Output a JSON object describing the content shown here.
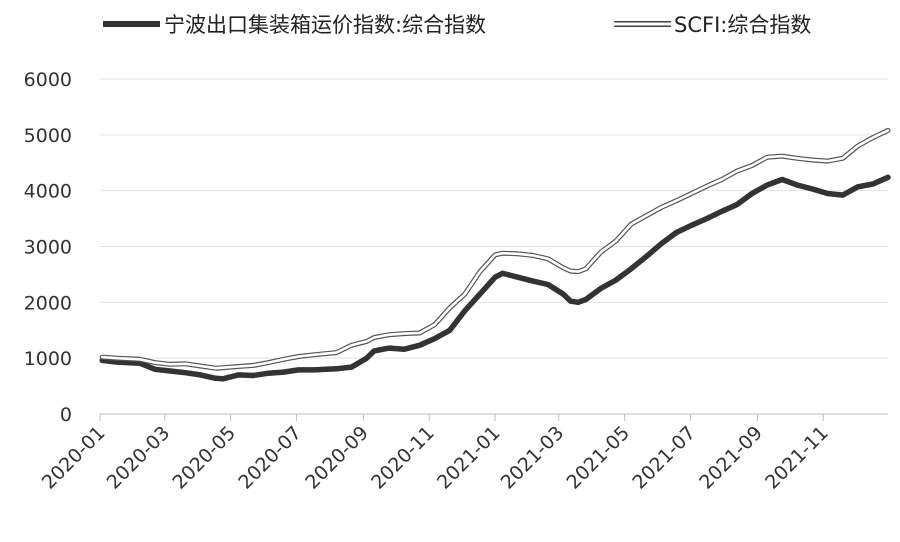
{
  "chart_data": {
    "type": "line",
    "title": "",
    "xlabel": "",
    "ylabel": "",
    "ylim": [
      0,
      6000
    ],
    "yticks": [
      0,
      1000,
      2000,
      3000,
      4000,
      5000,
      6000
    ],
    "ytick_labels": [
      "0",
      "1000",
      "2000",
      "3000",
      "4000",
      "5000",
      "6000"
    ],
    "xlim": [
      "2020-01",
      "2021-12-31"
    ],
    "xticks": [
      "2020-01",
      "2020-03",
      "2020-05",
      "2020-07",
      "2020-09",
      "2020-11",
      "2021-01",
      "2021-03",
      "2021-05",
      "2021-07",
      "2021-09",
      "2021-11"
    ],
    "grid": true,
    "legend_position": "top",
    "series": [
      {
        "name": "宁波出口集装箱运价指数:综合指数",
        "color": "#333333",
        "style": "solid-thick",
        "x": [
          "2020-01-03",
          "2020-01-17",
          "2020-02-07",
          "2020-02-21",
          "2020-03-06",
          "2020-03-20",
          "2020-04-03",
          "2020-04-17",
          "2020-04-24",
          "2020-05-08",
          "2020-05-22",
          "2020-06-05",
          "2020-06-19",
          "2020-07-03",
          "2020-07-17",
          "2020-08-07",
          "2020-08-21",
          "2020-09-04",
          "2020-09-11",
          "2020-09-25",
          "2020-10-09",
          "2020-10-23",
          "2020-11-06",
          "2020-11-20",
          "2020-12-04",
          "2020-12-18",
          "2021-01-01",
          "2021-01-08",
          "2021-01-22",
          "2021-02-05",
          "2021-02-19",
          "2021-03-05",
          "2021-03-12",
          "2021-03-19",
          "2021-03-26",
          "2021-04-09",
          "2021-04-23",
          "2021-05-07",
          "2021-05-21",
          "2021-06-04",
          "2021-06-18",
          "2021-07-02",
          "2021-07-16",
          "2021-07-30",
          "2021-08-13",
          "2021-08-27",
          "2021-09-10",
          "2021-09-24",
          "2021-10-08",
          "2021-10-22",
          "2021-11-05",
          "2021-11-19",
          "2021-12-03",
          "2021-12-17",
          "2021-12-31"
        ],
        "values": [
          960,
          930,
          910,
          800,
          770,
          740,
          700,
          640,
          630,
          700,
          690,
          730,
          750,
          790,
          790,
          810,
          840,
          1000,
          1130,
          1180,
          1160,
          1230,
          1350,
          1500,
          1850,
          2150,
          2450,
          2520,
          2450,
          2380,
          2320,
          2150,
          2020,
          2000,
          2050,
          2250,
          2400,
          2600,
          2820,
          3050,
          3250,
          3380,
          3500,
          3630,
          3750,
          3950,
          4100,
          4200,
          4100,
          4030,
          3950,
          3920,
          4070,
          4120,
          4240
        ]
      },
      {
        "name": "SCFI:综合指数",
        "color": "#333333",
        "style": "double-outline",
        "x": [
          "2020-01-03",
          "2020-01-17",
          "2020-02-07",
          "2020-02-21",
          "2020-03-06",
          "2020-03-20",
          "2020-04-03",
          "2020-04-17",
          "2020-04-24",
          "2020-05-08",
          "2020-05-22",
          "2020-06-05",
          "2020-06-19",
          "2020-07-03",
          "2020-07-17",
          "2020-08-07",
          "2020-08-21",
          "2020-09-04",
          "2020-09-11",
          "2020-09-25",
          "2020-10-09",
          "2020-10-23",
          "2020-11-06",
          "2020-11-20",
          "2020-12-04",
          "2020-12-18",
          "2021-01-01",
          "2021-01-08",
          "2021-01-22",
          "2021-02-05",
          "2021-02-19",
          "2021-03-05",
          "2021-03-12",
          "2021-03-19",
          "2021-03-26",
          "2021-04-09",
          "2021-04-23",
          "2021-05-07",
          "2021-05-21",
          "2021-06-04",
          "2021-06-18",
          "2021-07-02",
          "2021-07-16",
          "2021-07-30",
          "2021-08-13",
          "2021-08-27",
          "2021-09-10",
          "2021-09-24",
          "2021-10-08",
          "2021-10-22",
          "2021-11-05",
          "2021-11-19",
          "2021-12-03",
          "2021-12-17",
          "2021-12-31"
        ],
        "values": [
          1020,
          1000,
          980,
          920,
          890,
          900,
          860,
          820,
          830,
          850,
          870,
          920,
          980,
          1030,
          1060,
          1100,
          1230,
          1300,
          1370,
          1420,
          1440,
          1450,
          1600,
          1900,
          2150,
          2550,
          2850,
          2880,
          2870,
          2840,
          2780,
          2620,
          2560,
          2550,
          2600,
          2900,
          3100,
          3400,
          3550,
          3700,
          3820,
          3950,
          4080,
          4200,
          4350,
          4450,
          4600,
          4620,
          4580,
          4550,
          4530,
          4580,
          4800,
          4950,
          5080
        ]
      }
    ]
  }
}
